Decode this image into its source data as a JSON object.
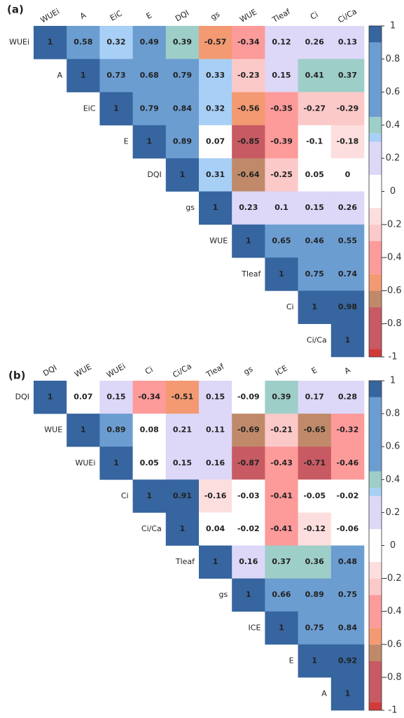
{
  "chart_data": [
    {
      "type": "heatmap",
      "panel_label": "(a)",
      "columns": [
        "WUEi",
        "A",
        "EiC",
        "E",
        "DQI",
        "gs",
        "WUE",
        "Tleaf",
        "Ci",
        "Ci/Ca"
      ],
      "rows": [
        "WUEi",
        "A",
        "EiC",
        "E",
        "DQI",
        "gs",
        "WUE",
        "Tleaf",
        "Ci",
        "Ci/Ca"
      ],
      "values": [
        [
          1,
          0.58,
          0.32,
          0.49,
          0.39,
          -0.57,
          -0.34,
          0.12,
          0.26,
          0.13
        ],
        [
          null,
          1,
          0.73,
          0.68,
          0.79,
          0.33,
          -0.23,
          0.15,
          0.41,
          0.37
        ],
        [
          null,
          null,
          1,
          0.79,
          0.84,
          0.32,
          -0.56,
          -0.35,
          -0.27,
          -0.29
        ],
        [
          null,
          null,
          null,
          1,
          0.89,
          0.07,
          -0.85,
          -0.39,
          -0.1,
          -0.18
        ],
        [
          null,
          null,
          null,
          null,
          1,
          0.31,
          -0.64,
          -0.25,
          0.05,
          0
        ],
        [
          null,
          null,
          null,
          null,
          null,
          1,
          0.23,
          0.1,
          0.15,
          0.26
        ],
        [
          null,
          null,
          null,
          null,
          null,
          null,
          1,
          0.65,
          0.46,
          0.55
        ],
        [
          null,
          null,
          null,
          null,
          null,
          null,
          null,
          1,
          0.75,
          0.74
        ],
        [
          null,
          null,
          null,
          null,
          null,
          null,
          null,
          null,
          1,
          0.98
        ],
        [
          null,
          null,
          null,
          null,
          null,
          null,
          null,
          null,
          null,
          1
        ]
      ],
      "zlim": [
        -1,
        1
      ],
      "zticks": [
        1,
        0.8,
        0.6,
        0.4,
        0.2,
        0,
        -0.2,
        -0.4,
        -0.6,
        -0.8,
        -1
      ],
      "colors": [
        [
          -1,
          "#d23a3a"
        ],
        [
          -0.95,
          "#c75a62"
        ],
        [
          -0.7,
          "#c08a6a"
        ],
        [
          -0.6,
          "#f39a72"
        ],
        [
          -0.5,
          "#fd9a9a"
        ],
        [
          -0.3,
          "#fcc9c9"
        ],
        [
          -0.2,
          "#fddede"
        ],
        [
          -0.1,
          "#ffffff"
        ],
        [
          0.1,
          "#ddd7f8"
        ],
        [
          0.3,
          "#a8cff5"
        ],
        [
          0.35,
          "#9ecec8"
        ],
        [
          0.45,
          "#6c9dd1"
        ],
        [
          0.9,
          "#36659f"
        ]
      ]
    },
    {
      "type": "heatmap",
      "panel_label": "(b)",
      "columns": [
        "DQI",
        "WUE",
        "WUEi",
        "Ci",
        "Ci/Ca",
        "Tleaf",
        "gs",
        "ICE",
        "E",
        "A"
      ],
      "rows": [
        "DQI",
        "WUE",
        "WUEi",
        "Ci",
        "Ci/Ca",
        "Tleaf",
        "gs",
        "ICE",
        "E",
        "A"
      ],
      "values": [
        [
          1,
          0.07,
          0.15,
          -0.34,
          -0.51,
          0.15,
          -0.09,
          0.39,
          0.17,
          0.28
        ],
        [
          null,
          1,
          0.89,
          0.08,
          0.21,
          0.11,
          -0.69,
          -0.21,
          -0.65,
          -0.32
        ],
        [
          null,
          null,
          1,
          0.05,
          0.15,
          0.16,
          -0.87,
          -0.43,
          -0.71,
          -0.46
        ],
        [
          null,
          null,
          null,
          1,
          0.91,
          -0.16,
          -0.03,
          -0.41,
          -0.05,
          -0.02
        ],
        [
          null,
          null,
          null,
          null,
          1,
          0.04,
          -0.02,
          -0.41,
          -0.12,
          -0.06
        ],
        [
          null,
          null,
          null,
          null,
          null,
          1,
          0.16,
          0.37,
          0.36,
          0.48
        ],
        [
          null,
          null,
          null,
          null,
          null,
          null,
          1,
          0.66,
          0.89,
          0.75
        ],
        [
          null,
          null,
          null,
          null,
          null,
          null,
          null,
          1,
          0.75,
          0.84
        ],
        [
          null,
          null,
          null,
          null,
          null,
          null,
          null,
          null,
          1,
          0.92
        ],
        [
          null,
          null,
          null,
          null,
          null,
          null,
          null,
          null,
          null,
          1
        ]
      ],
      "zlim": [
        -1,
        1
      ],
      "zticks": [
        1,
        0.8,
        0.6,
        0.4,
        0.2,
        0,
        -0.2,
        -0.4,
        -0.6,
        -0.8,
        -1
      ],
      "colors": [
        [
          -1,
          "#d23a3a"
        ],
        [
          -0.95,
          "#c75a62"
        ],
        [
          -0.7,
          "#c08a6a"
        ],
        [
          -0.6,
          "#f39a72"
        ],
        [
          -0.5,
          "#fd9a9a"
        ],
        [
          -0.3,
          "#fcc9c9"
        ],
        [
          -0.2,
          "#fddede"
        ],
        [
          -0.1,
          "#ffffff"
        ],
        [
          0.1,
          "#ddd7f8"
        ],
        [
          0.3,
          "#a8cff5"
        ],
        [
          0.35,
          "#9ecec8"
        ],
        [
          0.45,
          "#6c9dd1"
        ],
        [
          0.9,
          "#36659f"
        ]
      ]
    }
  ]
}
